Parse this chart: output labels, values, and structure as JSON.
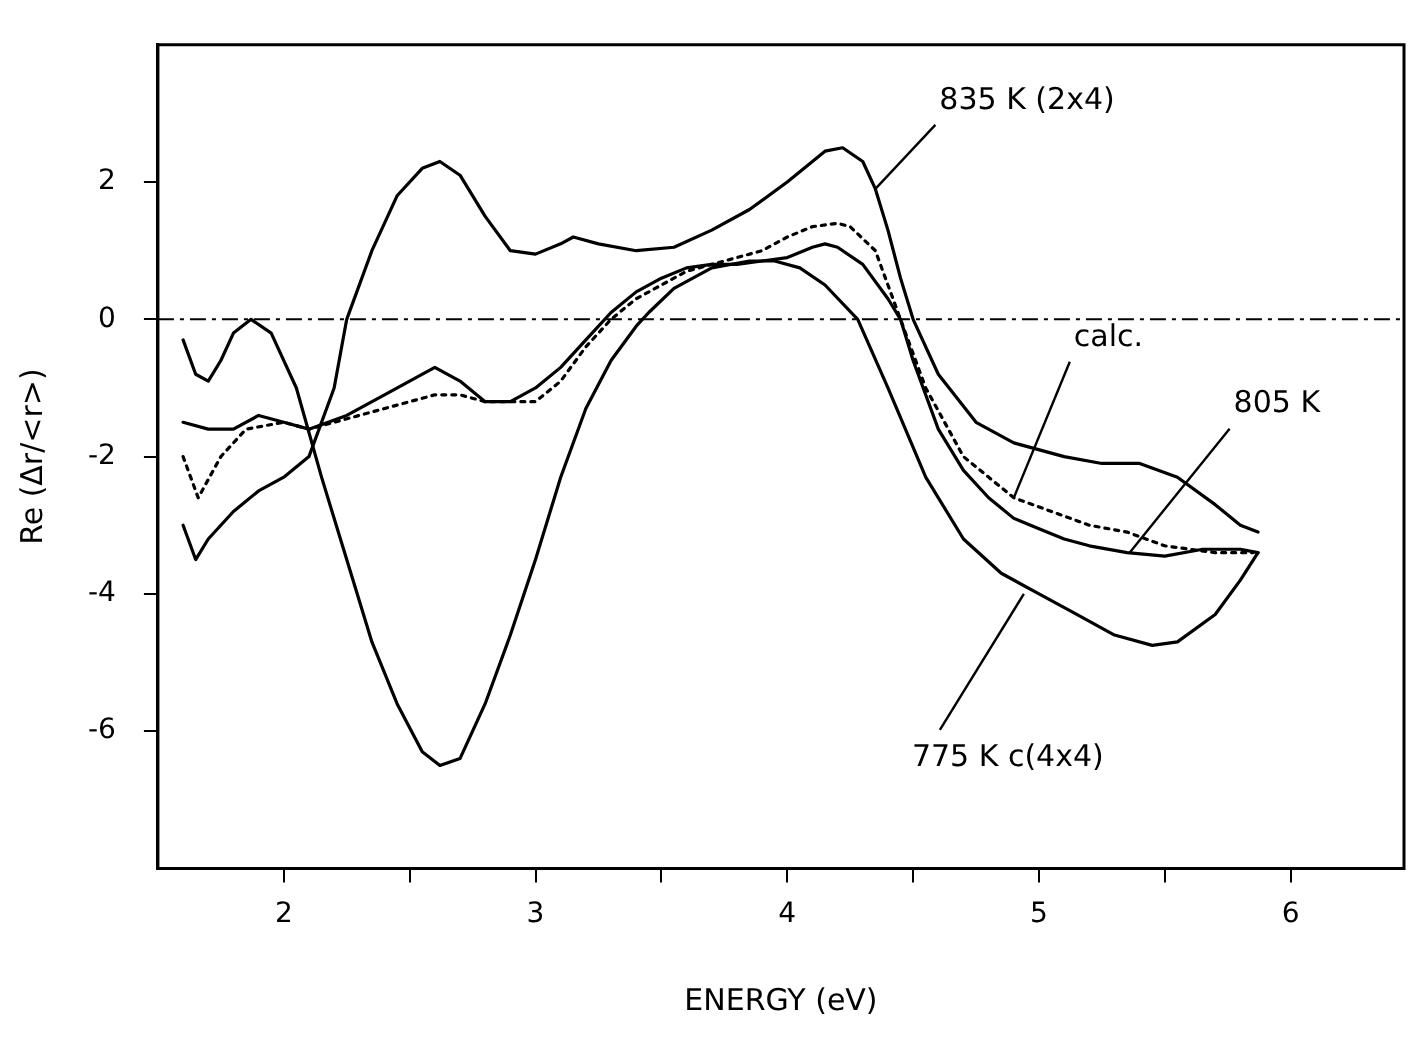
{
  "chart_data": {
    "type": "line",
    "xlabel": "ENERGY (eV)",
    "ylabel": "Re (Δr/<r>)",
    "xlim": [
      1.5,
      6.45
    ],
    "xticks": [
      2,
      {
        "value": 2.5,
        "label": null
      },
      3,
      {
        "value": 3.5,
        "label": null
      },
      4,
      {
        "value": 4.5,
        "label": null
      },
      5,
      {
        "value": 5.5,
        "label": null
      },
      6
    ],
    "ylim": [
      -8,
      4
    ],
    "yticks": [
      -6,
      -4,
      -2,
      0,
      2
    ],
    "grid": false,
    "legend": false,
    "marker": "none",
    "series": [
      {
        "color": "#000000",
        "line_style": "solid",
        "x": [
          1.6,
          1.65,
          1.7,
          1.8,
          1.9,
          2.0,
          2.1,
          2.2,
          2.25,
          2.35,
          2.45,
          2.55,
          2.62,
          2.7,
          2.8,
          2.9,
          3.0,
          3.1,
          3.15,
          3.25,
          3.4,
          3.55,
          3.7,
          3.85,
          4.0,
          4.1,
          4.15,
          4.22,
          4.3,
          4.35,
          4.4,
          4.45,
          4.5,
          4.6,
          4.75,
          4.9,
          5.1,
          5.25,
          5.4,
          5.55,
          5.7,
          5.8,
          5.87
        ],
        "values": [
          -3.0,
          -3.5,
          -3.2,
          -2.8,
          -2.5,
          -2.3,
          -2.0,
          -1.0,
          0.0,
          1.0,
          1.8,
          2.2,
          2.3,
          2.1,
          1.5,
          1.0,
          0.95,
          1.1,
          1.2,
          1.1,
          1.0,
          1.05,
          1.3,
          1.6,
          2.0,
          2.3,
          2.45,
          2.5,
          2.3,
          1.9,
          1.3,
          0.6,
          0.0,
          -0.8,
          -1.5,
          -1.8,
          -2.0,
          -2.1,
          -2.1,
          -2.3,
          -2.7,
          -3.0,
          -3.1
        ]
      },
      {
        "color": "#000000",
        "line_style": "solid",
        "x": [
          1.6,
          1.7,
          1.8,
          1.9,
          2.0,
          2.1,
          2.25,
          2.4,
          2.5,
          2.6,
          2.7,
          2.8,
          2.9,
          3.0,
          3.1,
          3.2,
          3.3,
          3.4,
          3.5,
          3.6,
          3.7,
          3.8,
          3.9,
          4.0,
          4.1,
          4.15,
          4.2,
          4.3,
          4.4,
          4.45,
          4.5,
          4.6,
          4.7,
          4.8,
          4.9,
          5.0,
          5.1,
          5.2,
          5.35,
          5.5,
          5.65,
          5.8,
          5.87
        ],
        "values": [
          -1.5,
          -1.6,
          -1.6,
          -1.4,
          -1.5,
          -1.6,
          -1.4,
          -1.1,
          -0.9,
          -0.7,
          -0.9,
          -1.2,
          -1.2,
          -1.0,
          -0.7,
          -0.3,
          0.1,
          0.4,
          0.6,
          0.75,
          0.8,
          0.8,
          0.85,
          0.9,
          1.05,
          1.1,
          1.05,
          0.8,
          0.3,
          0.0,
          -0.6,
          -1.6,
          -2.2,
          -2.6,
          -2.9,
          -3.05,
          -3.2,
          -3.3,
          -3.4,
          -3.45,
          -3.35,
          -3.35,
          -3.4
        ]
      },
      {
        "color": "#000000",
        "line_style": "dotted",
        "x": [
          1.6,
          1.66,
          1.75,
          1.85,
          2.0,
          2.1,
          2.3,
          2.5,
          2.6,
          2.7,
          2.8,
          3.0,
          3.1,
          3.2,
          3.3,
          3.4,
          3.5,
          3.6,
          3.75,
          3.9,
          4.0,
          4.1,
          4.2,
          4.25,
          4.35,
          4.4,
          4.5,
          4.55,
          4.7,
          4.9,
          5.05,
          5.2,
          5.35,
          5.5,
          5.7,
          5.85
        ],
        "values": [
          -2.0,
          -2.6,
          -2.0,
          -1.6,
          -1.5,
          -1.6,
          -1.4,
          -1.2,
          -1.1,
          -1.1,
          -1.2,
          -1.2,
          -0.9,
          -0.4,
          0.0,
          0.3,
          0.5,
          0.7,
          0.85,
          1.0,
          1.2,
          1.35,
          1.4,
          1.35,
          1.0,
          0.5,
          -0.5,
          -1.0,
          -2.0,
          -2.6,
          -2.8,
          -3.0,
          -3.1,
          -3.3,
          -3.4,
          -3.4
        ]
      },
      {
        "color": "#000000",
        "line_style": "solid",
        "x": [
          1.6,
          1.65,
          1.7,
          1.75,
          1.8,
          1.87,
          1.95,
          2.05,
          2.15,
          2.25,
          2.35,
          2.45,
          2.55,
          2.62,
          2.7,
          2.8,
          2.9,
          3.0,
          3.1,
          3.2,
          3.3,
          3.4,
          3.45,
          3.55,
          3.7,
          3.85,
          3.95,
          4.05,
          4.15,
          4.28,
          4.4,
          4.55,
          4.7,
          4.85,
          5.0,
          5.15,
          5.3,
          5.45,
          5.55,
          5.7,
          5.8,
          5.87
        ],
        "values": [
          -0.3,
          -0.8,
          -0.9,
          -0.6,
          -0.2,
          0.0,
          -0.2,
          -1.0,
          -2.3,
          -3.5,
          -4.7,
          -5.6,
          -6.3,
          -6.5,
          -6.4,
          -5.6,
          -4.6,
          -3.5,
          -2.3,
          -1.3,
          -0.6,
          -0.1,
          0.1,
          0.45,
          0.75,
          0.85,
          0.85,
          0.75,
          0.5,
          0.0,
          -1.0,
          -2.3,
          -3.2,
          -3.7,
          -4.0,
          -4.3,
          -4.6,
          -4.75,
          -4.7,
          -4.3,
          -3.8,
          -3.4
        ]
      }
    ],
    "ref_lines": [
      {
        "axis": "y",
        "value": 0,
        "line_style": "dashdot",
        "color": "#000000"
      }
    ],
    "annotations": [
      {
        "text": "835 K (2x4)",
        "x": 4.35,
        "y": 1.9
      },
      {
        "text": "calc.",
        "x": 4.9,
        "y": -2.6
      },
      {
        "text": "805 K",
        "x": 5.36,
        "y": -3.4
      },
      {
        "text": "775 K c(4x4)",
        "x": 4.94,
        "y": -4.0
      }
    ]
  }
}
